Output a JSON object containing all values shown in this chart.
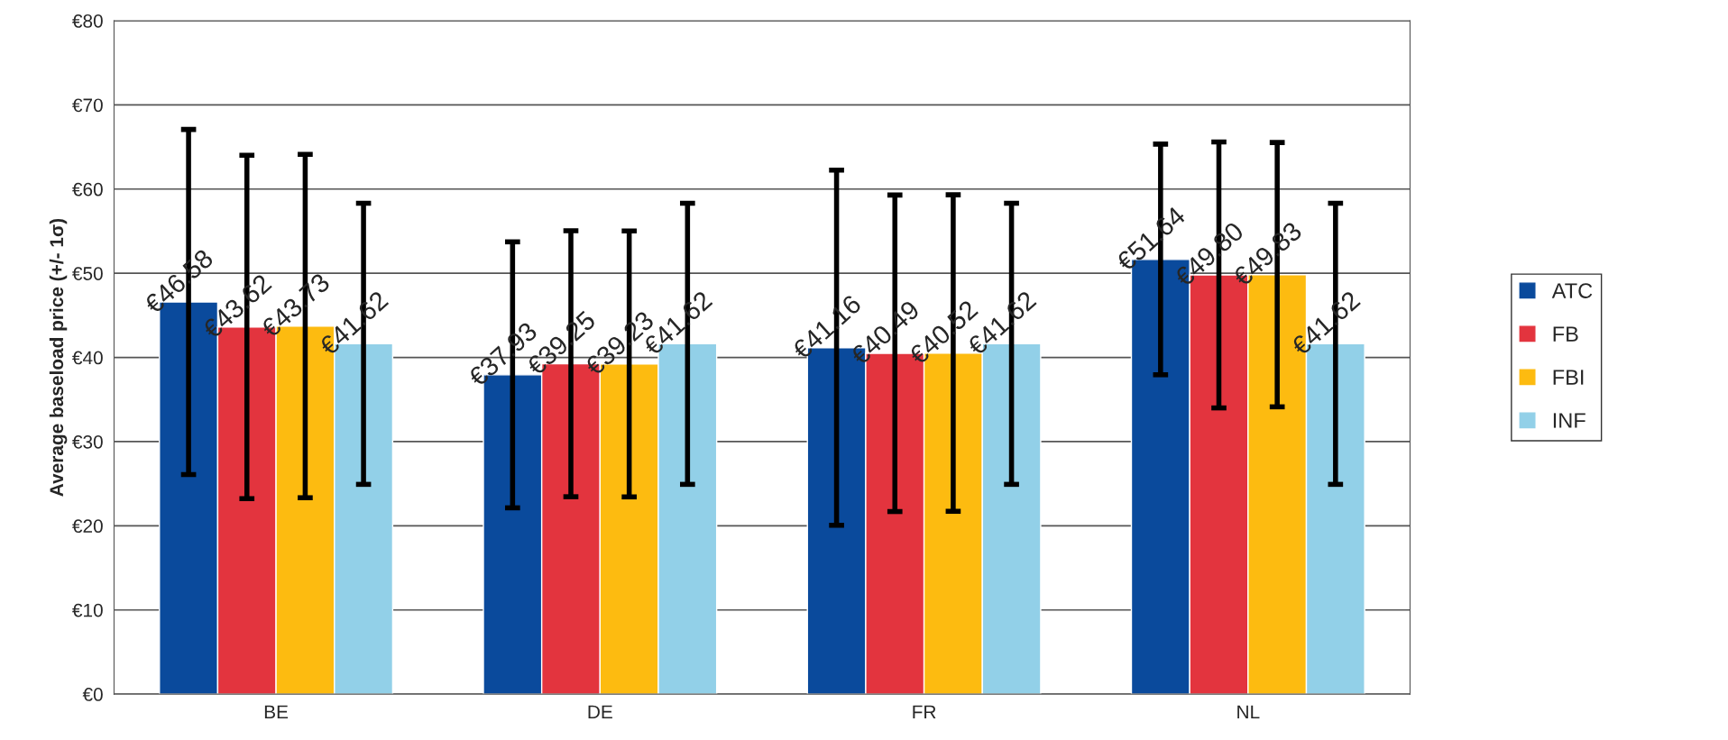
{
  "chart_data": {
    "type": "bar",
    "ylabel": "Average baseload price (+/- 1σ)",
    "categories": [
      "BE",
      "DE",
      "FR",
      "NL"
    ],
    "series": [
      {
        "name": "ATC",
        "color": "#0a4a9c",
        "values": [
          46.58,
          37.93,
          41.16,
          51.64
        ],
        "errors": [
          20.5,
          15.8,
          21.1,
          13.7
        ],
        "value_labels": [
          "€46.58",
          "€37.93",
          "€41.16",
          "€51.64"
        ]
      },
      {
        "name": "FB",
        "color": "#e3343e",
        "values": [
          43.62,
          39.25,
          40.49,
          49.8
        ],
        "errors": [
          20.4,
          15.8,
          18.8,
          15.8
        ],
        "value_labels": [
          "€43.62",
          "€39.25",
          "€40.49",
          "€49.80"
        ]
      },
      {
        "name": "FBI",
        "color": "#fdbb10",
        "values": [
          43.73,
          39.23,
          40.52,
          49.83
        ],
        "errors": [
          20.4,
          15.8,
          18.8,
          15.7
        ],
        "value_labels": [
          "€43.73",
          "€39.23",
          "€40.52",
          "€49.83"
        ]
      },
      {
        "name": "INF",
        "color": "#92d0e8",
        "values": [
          41.62,
          41.62,
          41.62,
          41.62
        ],
        "errors": [
          16.7,
          16.7,
          16.7,
          16.7
        ],
        "value_labels": [
          "€41.62",
          "€41.62",
          "€41.62",
          "€41.62"
        ]
      }
    ],
    "ylim": [
      0,
      80
    ],
    "yticks": [
      {
        "value": 0,
        "label": "€0"
      },
      {
        "value": 10,
        "label": "€10"
      },
      {
        "value": 20,
        "label": "€20"
      },
      {
        "value": 30,
        "label": "€30"
      },
      {
        "value": 40,
        "label": "€40"
      },
      {
        "value": 50,
        "label": "€50"
      },
      {
        "value": 60,
        "label": "€60"
      },
      {
        "value": 70,
        "label": "€70"
      },
      {
        "value": 80,
        "label": "€80"
      }
    ],
    "grid": "y",
    "legend": "right"
  }
}
